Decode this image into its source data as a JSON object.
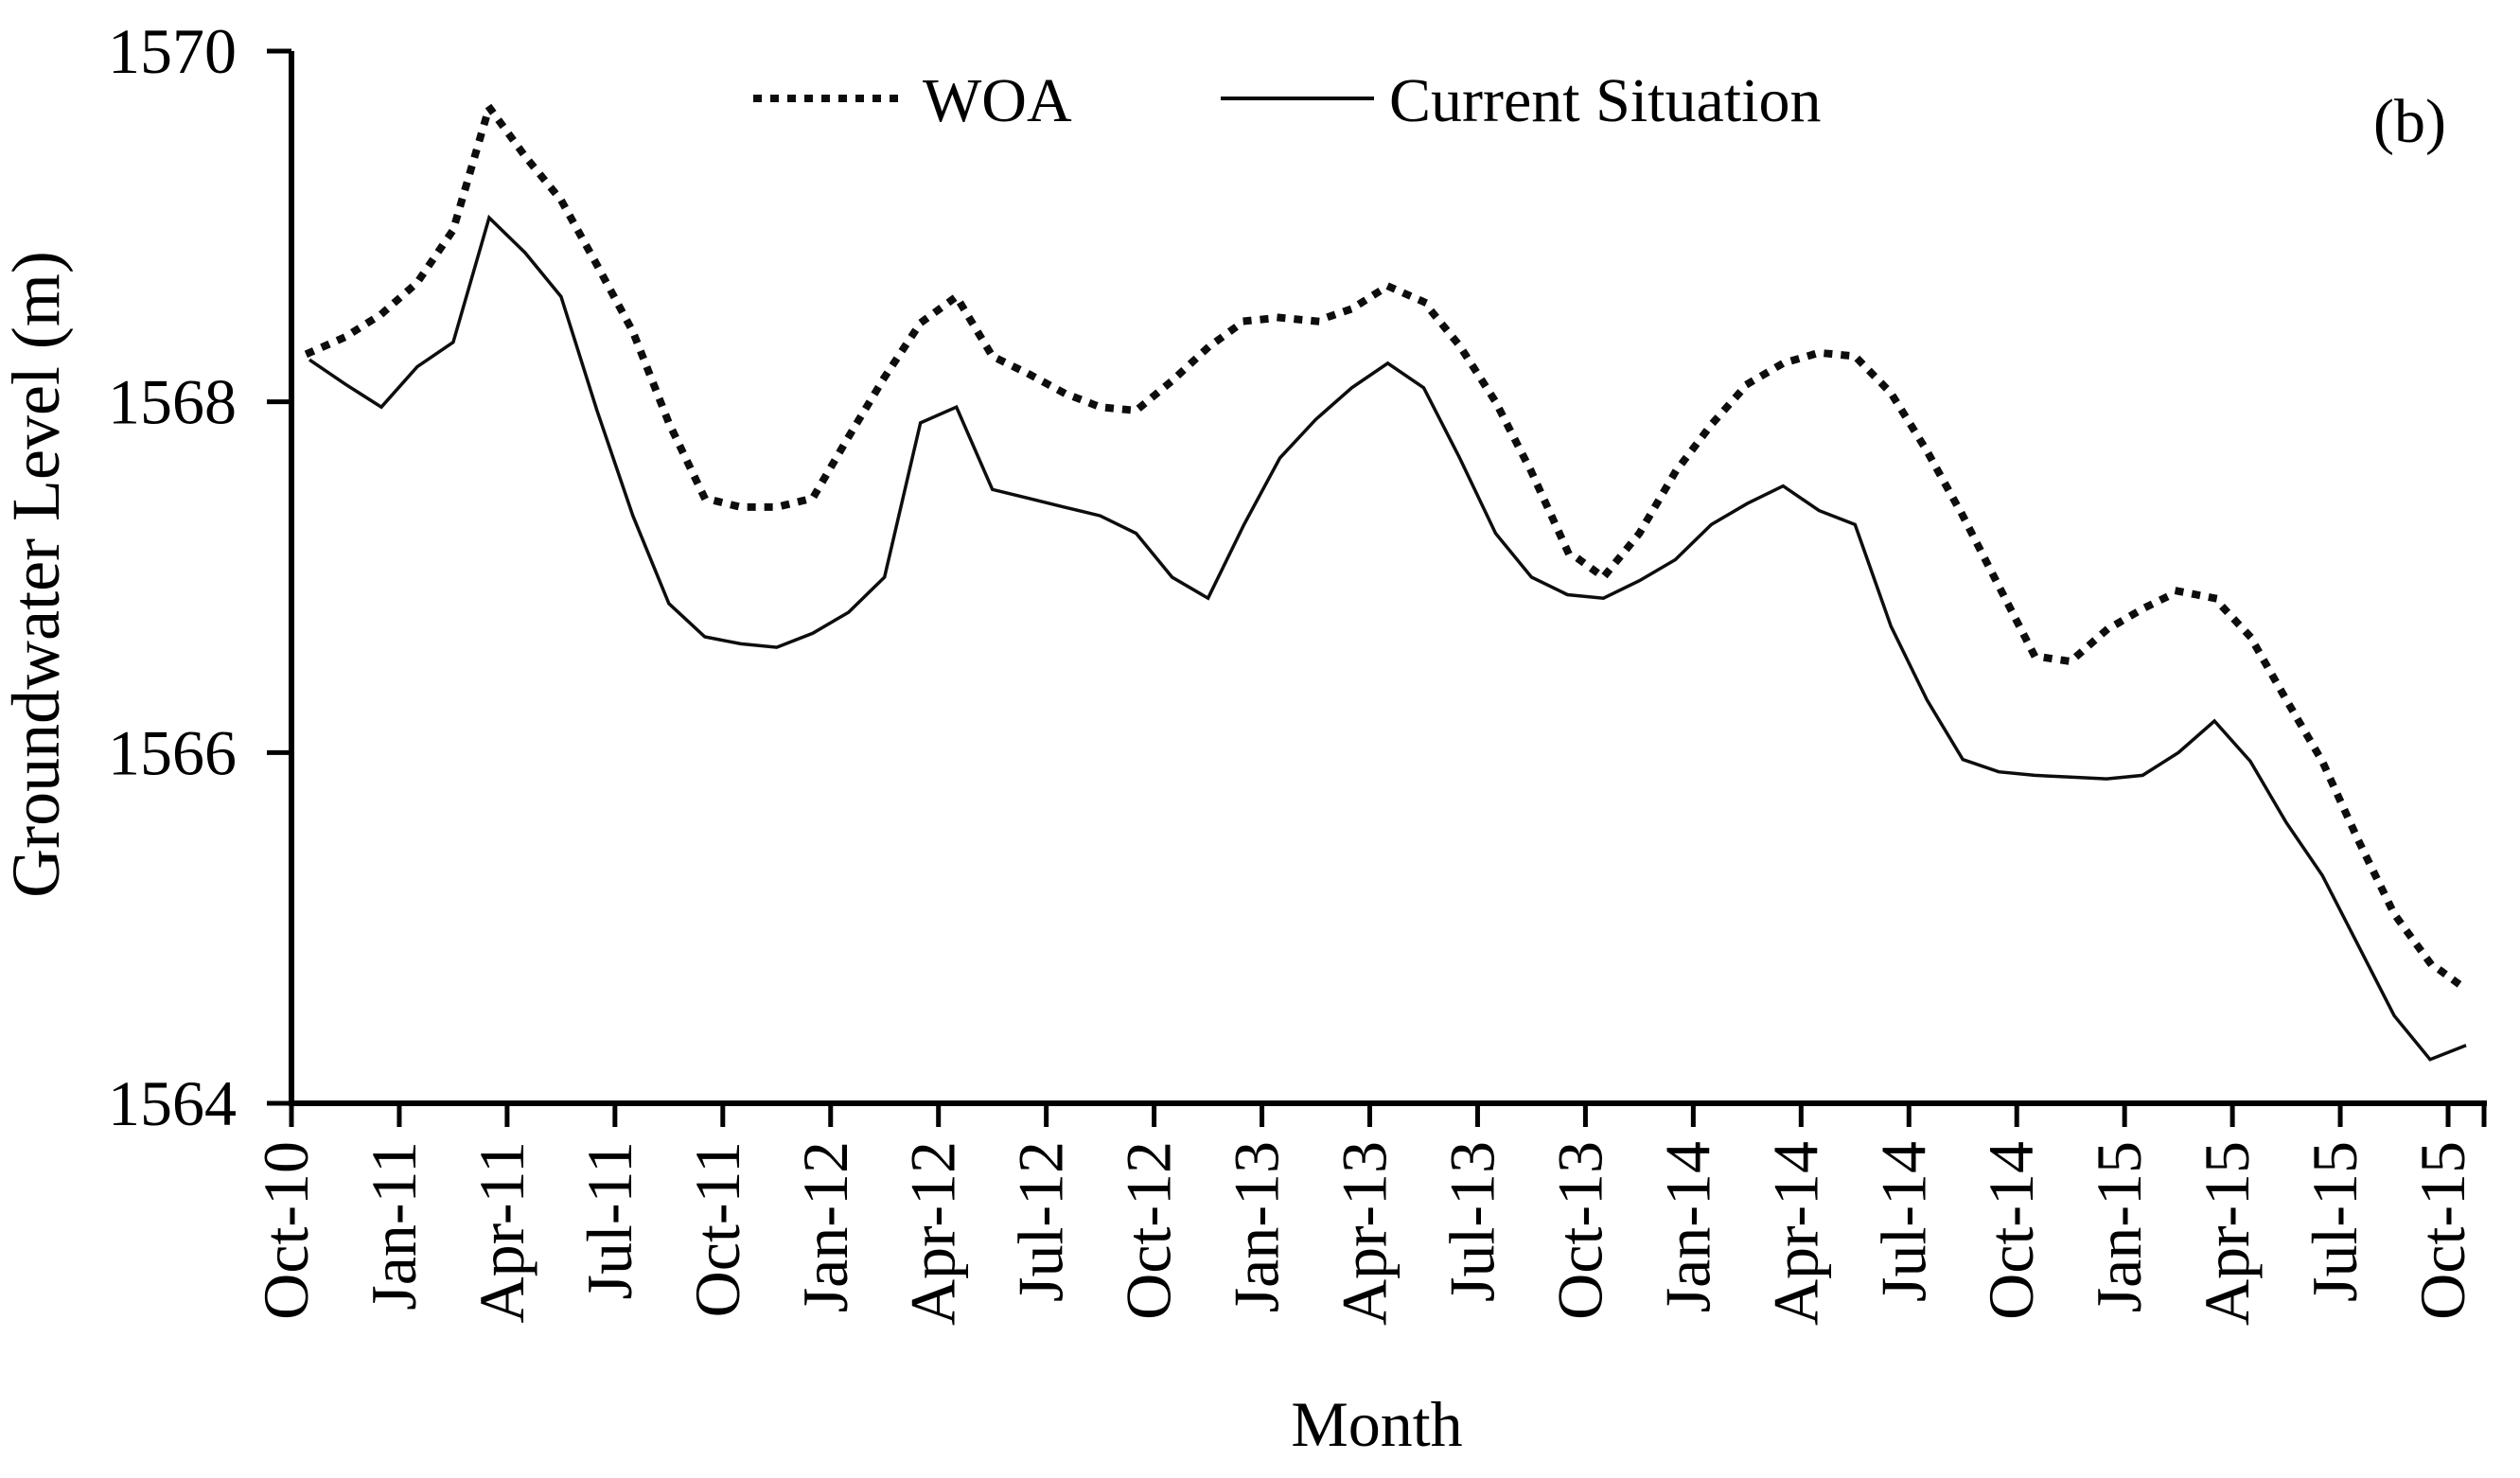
{
  "panel_label": "(b)",
  "chart_data": {
    "type": "line",
    "title": "",
    "xlabel": "Month",
    "ylabel": "Groundwater Level (m)",
    "ylim": [
      1564,
      1570
    ],
    "yticks": [
      1570,
      1568,
      1566,
      1564
    ],
    "grid": false,
    "legend_position": "top-center",
    "x": [
      "Oct-10",
      "Nov-10",
      "Dec-10",
      "Jan-11",
      "Feb-11",
      "Mar-11",
      "Apr-11",
      "May-11",
      "Jun-11",
      "Jul-11",
      "Aug-11",
      "Sep-11",
      "Oct-11",
      "Nov-11",
      "Dec-11",
      "Jan-12",
      "Feb-12",
      "Mar-12",
      "Apr-12",
      "May-12",
      "Jun-12",
      "Jul-12",
      "Aug-12",
      "Sep-12",
      "Oct-12",
      "Nov-12",
      "Dec-12",
      "Jan-13",
      "Feb-13",
      "Mar-13",
      "Apr-13",
      "May-13",
      "Jun-13",
      "Jul-13",
      "Aug-13",
      "Sep-13",
      "Oct-13",
      "Nov-13",
      "Dec-13",
      "Jan-14",
      "Feb-14",
      "Mar-14",
      "Apr-14",
      "May-14",
      "Jun-14",
      "Jul-14",
      "Aug-14",
      "Sep-14",
      "Oct-14",
      "Nov-14",
      "Dec-14",
      "Jan-15",
      "Feb-15",
      "Mar-15",
      "Apr-15",
      "May-15",
      "Jun-15",
      "Jul-15",
      "Aug-15",
      "Sep-15",
      "Oct-15"
    ],
    "xtick_every": 3,
    "xtick_labels": [
      "Oct-10",
      "Jan-11",
      "Apr-11",
      "Jul-11",
      "Oct-11",
      "Jan-12",
      "Apr-12",
      "Jul-12",
      "Oct-12",
      "Jan-13",
      "Apr-13",
      "Jul-13",
      "Oct-13",
      "Jan-14",
      "Apr-14",
      "Jul-14",
      "Oct-14",
      "Jan-15",
      "Apr-15",
      "Jul-15",
      "Oct-15"
    ],
    "series": [
      {
        "name": "WOA",
        "style": "dotted",
        "color": "#0d0d0d",
        "values": [
          1568.28,
          1568.37,
          1568.5,
          1568.68,
          1568.98,
          1569.68,
          1569.4,
          1569.15,
          1568.78,
          1568.4,
          1567.88,
          1567.45,
          1567.4,
          1567.4,
          1567.45,
          1567.8,
          1568.14,
          1568.45,
          1568.6,
          1568.26,
          1568.16,
          1568.05,
          1567.97,
          1567.95,
          1568.12,
          1568.31,
          1568.46,
          1568.48,
          1568.46,
          1568.53,
          1568.66,
          1568.57,
          1568.32,
          1568.0,
          1567.6,
          1567.15,
          1567.0,
          1567.25,
          1567.6,
          1567.87,
          1568.1,
          1568.22,
          1568.28,
          1568.26,
          1568.05,
          1567.72,
          1567.35,
          1566.95,
          1566.55,
          1566.52,
          1566.7,
          1566.82,
          1566.92,
          1566.88,
          1566.66,
          1566.3,
          1565.95,
          1565.5,
          1565.08,
          1564.8,
          1564.65
        ]
      },
      {
        "name": "Current Situation",
        "style": "solid",
        "color": "#0d0d0d",
        "values": [
          1568.24,
          1568.1,
          1567.97,
          1568.2,
          1568.34,
          1569.05,
          1568.85,
          1568.6,
          1567.95,
          1567.35,
          1566.85,
          1566.66,
          1566.62,
          1566.6,
          1566.68,
          1566.8,
          1567.0,
          1567.88,
          1567.97,
          1567.5,
          1567.45,
          1567.4,
          1567.35,
          1567.25,
          1567.0,
          1566.88,
          1567.3,
          1567.68,
          1567.9,
          1568.08,
          1568.22,
          1568.08,
          1567.68,
          1567.25,
          1567.0,
          1566.9,
          1566.88,
          1566.98,
          1567.1,
          1567.3,
          1567.42,
          1567.52,
          1567.38,
          1567.3,
          1566.72,
          1566.3,
          1565.96,
          1565.89,
          1565.87,
          1565.86,
          1565.85,
          1565.87,
          1566.0,
          1566.18,
          1565.95,
          1565.6,
          1565.3,
          1564.9,
          1564.5,
          1564.25,
          1564.33
        ]
      }
    ]
  }
}
